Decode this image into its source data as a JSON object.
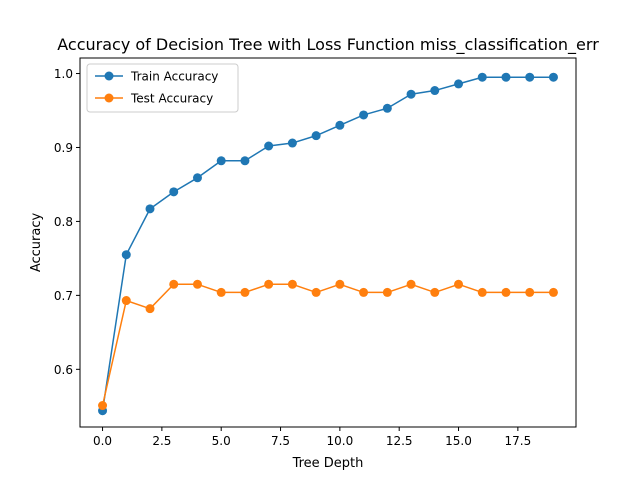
{
  "chart_data": {
    "type": "line",
    "title": "Accuracy of Decision Tree with Loss Function miss_classification_err",
    "xlabel": "Tree Depth",
    "ylabel": "Accuracy",
    "xlim": [
      -0.95,
      19.95
    ],
    "ylim": [
      0.522,
      1.021
    ],
    "x_ticks": [
      0.0,
      2.5,
      5.0,
      7.5,
      10.0,
      12.5,
      15.0,
      17.5
    ],
    "x_tick_labels": [
      "0.0",
      "2.5",
      "5.0",
      "7.5",
      "10.0",
      "12.5",
      "15.0",
      "17.5"
    ],
    "y_ticks": [
      0.6,
      0.7,
      0.8,
      0.9,
      1.0
    ],
    "y_tick_labels": [
      "0.6",
      "0.7",
      "0.8",
      "0.9",
      "1.0"
    ],
    "grid": false,
    "legend_position": "top-left",
    "x": [
      0,
      1,
      2,
      3,
      4,
      5,
      6,
      7,
      8,
      9,
      10,
      11,
      12,
      13,
      14,
      15,
      16,
      17,
      18,
      19
    ],
    "series": [
      {
        "name": "Train Accuracy",
        "color": "#1f77b4",
        "marker": "circle",
        "values": [
          0.544,
          0.755,
          0.817,
          0.84,
          0.859,
          0.882,
          0.882,
          0.902,
          0.906,
          0.916,
          0.93,
          0.944,
          0.953,
          0.972,
          0.977,
          0.986,
          0.995,
          0.995,
          0.995,
          0.995
        ]
      },
      {
        "name": "Test Accuracy",
        "color": "#ff7f0e",
        "marker": "circle",
        "values": [
          0.551,
          0.693,
          0.682,
          0.715,
          0.715,
          0.704,
          0.704,
          0.715,
          0.715,
          0.704,
          0.715,
          0.704,
          0.704,
          0.715,
          0.704,
          0.715,
          0.704,
          0.704,
          0.704,
          0.704
        ]
      }
    ]
  }
}
